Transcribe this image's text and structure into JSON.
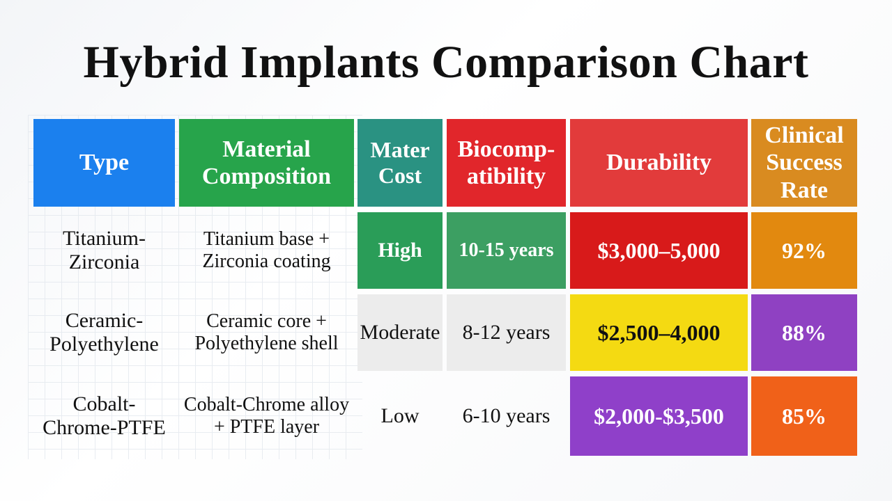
{
  "header": {
    "title": "Hybrid Implants Comparison Chart"
  },
  "table": {
    "columns": [
      "Type",
      "Material Composition",
      "Mater Cost",
      "Biocomp-atibility",
      "Durability",
      "Clinical Success Rate"
    ],
    "rows": [
      [
        "Titanium-Zirconia",
        "Titanium base + Zirconia coating",
        "High",
        "10-15 years",
        "$3,000–5,000",
        "92%"
      ],
      [
        "Ceramic-Polyethylene",
        "Ceramic core + Polyethylene shell",
        "Moderate",
        "8-12 years",
        "$2,500–4,000",
        "88%"
      ],
      [
        "Cobalt-Chrome-PTFE",
        "Cobalt-Chrome alloy + PTFE layer",
        "Low",
        "6-10 years",
        "$2,000-$3,500",
        "85%"
      ]
    ]
  }
}
